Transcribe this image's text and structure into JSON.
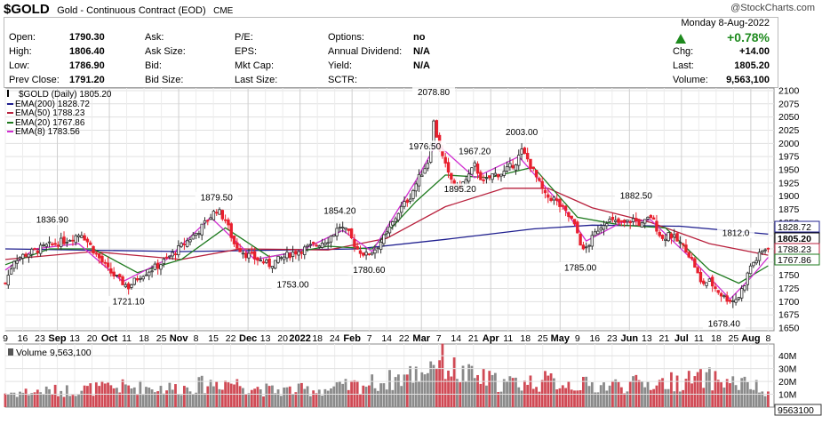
{
  "header": {
    "symbol": "$GOLD",
    "description": "Gold - Continuous Contract (EOD)",
    "exchange": "CME",
    "watermark": "@StockCharts.com"
  },
  "quote": {
    "date": "Monday  8-Aug-2022",
    "change_pct": "+0.78%",
    "col1": [
      {
        "label": "Open:",
        "value": "1790.30"
      },
      {
        "label": "High:",
        "value": "1806.40"
      },
      {
        "label": "Low:",
        "value": "1786.90"
      },
      {
        "label": "Prev Close:",
        "value": "1791.20"
      }
    ],
    "col2": [
      {
        "label": "Ask:",
        "value": ""
      },
      {
        "label": "Ask Size:",
        "value": ""
      },
      {
        "label": "Bid:",
        "value": ""
      },
      {
        "label": "Bid Size:",
        "value": ""
      }
    ],
    "col3": [
      {
        "label": "P/E:",
        "value": ""
      },
      {
        "label": "EPS:",
        "value": ""
      },
      {
        "label": "Mkt Cap:",
        "value": ""
      },
      {
        "label": "Last Size:",
        "value": ""
      }
    ],
    "col4": [
      {
        "label": "Options:",
        "value": "no"
      },
      {
        "label": "Annual Dividend:",
        "value": "N/A"
      },
      {
        "label": "Yield:",
        "value": "N/A"
      },
      {
        "label": "SCTR:",
        "value": ""
      }
    ],
    "col5": [
      {
        "label": "Chg:",
        "value": "+14.00"
      },
      {
        "label": "Last:",
        "value": "1805.20"
      },
      {
        "label": "Volume:",
        "value": "9,563,100"
      }
    ]
  },
  "legend": [
    {
      "text": "$GOLD (Daily) 1805.20",
      "color": "#000000"
    },
    {
      "text": "EMA(200) 1828.72",
      "color": "#1f1f8f"
    },
    {
      "text": "EMA(50) 1788.23",
      "color": "#b8203c"
    },
    {
      "text": "EMA(20) 1767.86",
      "color": "#1e7a1e"
    },
    {
      "text": "EMA(8) 1783.56",
      "color": "#d02ed0"
    }
  ],
  "volume_legend": "Volume 9,563,100",
  "colors": {
    "up": "#2b2b2b",
    "down": "#e8202e",
    "ema200": "#1f1f8f",
    "ema50": "#b8203c",
    "ema20": "#1e7a1e",
    "ema8": "#d02ed0",
    "vol_up": "#8a8a8a",
    "vol_down": "#d04a55",
    "grid": "#e0e0e0",
    "arrow_up": "#1e8a1e"
  },
  "chart_data": [
    {
      "type": "candlestick",
      "title": "$GOLD (Daily) 1805.20",
      "y_ticks": [
        1650,
        1675,
        1700,
        1725,
        1750,
        1775,
        1800,
        1825,
        1850,
        1875,
        1900,
        1925,
        1950,
        1975,
        2000,
        2025,
        2050,
        2075,
        2100
      ],
      "ylim": [
        1645,
        2105
      ],
      "x_ticks": [
        "9",
        "16",
        "23",
        "Sep",
        "13",
        "20",
        "Oct",
        "11",
        "18",
        "25",
        "Nov",
        "8",
        "15",
        "22",
        "Dec",
        "13",
        "20",
        "2022",
        "18",
        "24",
        "Feb",
        "7",
        "14",
        "22",
        "Mar",
        "7",
        "14",
        "21",
        "Apr",
        "11",
        "18",
        "25",
        "May",
        "9",
        "16",
        "23",
        "Jun",
        "13",
        "21",
        "Jul",
        "11",
        "18",
        "25",
        "Aug",
        "8"
      ],
      "month_ticks": [
        "Sep",
        "Oct",
        "Nov",
        "Dec",
        "2022",
        "Feb",
        "Mar",
        "Apr",
        "May",
        "Jun",
        "Jul",
        "Aug"
      ],
      "grid": true,
      "close_path": [
        {
          "t": 0,
          "v": 1735
        },
        {
          "t": 3,
          "v": 1780
        },
        {
          "t": 8,
          "v": 1792
        },
        {
          "t": 14,
          "v": 1805
        },
        {
          "t": 20,
          "v": 1815
        },
        {
          "t": 26,
          "v": 1830
        },
        {
          "t": 31,
          "v": 1790
        },
        {
          "t": 35,
          "v": 1760
        },
        {
          "t": 39,
          "v": 1740
        },
        {
          "t": 42,
          "v": 1728
        },
        {
          "t": 46,
          "v": 1750
        },
        {
          "t": 52,
          "v": 1768
        },
        {
          "t": 57,
          "v": 1790
        },
        {
          "t": 61,
          "v": 1810
        },
        {
          "t": 66,
          "v": 1835
        },
        {
          "t": 70,
          "v": 1862
        },
        {
          "t": 72,
          "v": 1875
        },
        {
          "t": 75,
          "v": 1855
        },
        {
          "t": 78,
          "v": 1810
        },
        {
          "t": 82,
          "v": 1790
        },
        {
          "t": 86,
          "v": 1780
        },
        {
          "t": 90,
          "v": 1770
        },
        {
          "t": 94,
          "v": 1782
        },
        {
          "t": 98,
          "v": 1793
        },
        {
          "t": 102,
          "v": 1800
        },
        {
          "t": 106,
          "v": 1808
        },
        {
          "t": 110,
          "v": 1818
        },
        {
          "t": 114,
          "v": 1843
        },
        {
          "t": 117,
          "v": 1828
        },
        {
          "t": 120,
          "v": 1800
        },
        {
          "t": 123,
          "v": 1788
        },
        {
          "t": 126,
          "v": 1800
        },
        {
          "t": 130,
          "v": 1828
        },
        {
          "t": 134,
          "v": 1870
        },
        {
          "t": 138,
          "v": 1900
        },
        {
          "t": 141,
          "v": 1935
        },
        {
          "t": 144,
          "v": 1965
        },
        {
          "t": 146,
          "v": 2040
        },
        {
          "t": 148,
          "v": 1990
        },
        {
          "t": 151,
          "v": 1940
        },
        {
          "t": 154,
          "v": 1915
        },
        {
          "t": 157,
          "v": 1930
        },
        {
          "t": 160,
          "v": 1958
        },
        {
          "t": 163,
          "v": 1925
        },
        {
          "t": 166,
          "v": 1940
        },
        {
          "t": 170,
          "v": 1945
        },
        {
          "t": 174,
          "v": 1965
        },
        {
          "t": 176,
          "v": 1985
        },
        {
          "t": 178,
          "v": 1970
        },
        {
          "t": 181,
          "v": 1935
        },
        {
          "t": 184,
          "v": 1900
        },
        {
          "t": 187,
          "v": 1895
        },
        {
          "t": 190,
          "v": 1875
        },
        {
          "t": 193,
          "v": 1855
        },
        {
          "t": 195,
          "v": 1830
        },
        {
          "t": 197,
          "v": 1795
        },
        {
          "t": 199,
          "v": 1810
        },
        {
          "t": 202,
          "v": 1838
        },
        {
          "t": 205,
          "v": 1855
        },
        {
          "t": 208,
          "v": 1850
        },
        {
          "t": 211,
          "v": 1848
        },
        {
          "t": 214,
          "v": 1856
        },
        {
          "t": 217,
          "v": 1845
        },
        {
          "t": 220,
          "v": 1862
        },
        {
          "t": 222,
          "v": 1840
        },
        {
          "t": 224,
          "v": 1818
        },
        {
          "t": 226,
          "v": 1830
        },
        {
          "t": 229,
          "v": 1815
        },
        {
          "t": 232,
          "v": 1800
        },
        {
          "t": 235,
          "v": 1768
        },
        {
          "t": 237,
          "v": 1735
        },
        {
          "t": 240,
          "v": 1738
        },
        {
          "t": 243,
          "v": 1720
        },
        {
          "t": 245,
          "v": 1708
        },
        {
          "t": 248,
          "v": 1702
        },
        {
          "t": 250,
          "v": 1710
        },
        {
          "t": 252,
          "v": 1735
        },
        {
          "t": 254,
          "v": 1768
        },
        {
          "t": 256,
          "v": 1780
        },
        {
          "t": 258,
          "v": 1795
        },
        {
          "t": 260,
          "v": 1805
        }
      ],
      "annotations": [
        {
          "label": "1836.90",
          "t": 16,
          "v": 1836.9
        },
        {
          "label": "1721.10",
          "t": 42,
          "v": 1721.1
        },
        {
          "label": "1879.50",
          "t": 72,
          "v": 1879.5
        },
        {
          "label": "1753.00",
          "t": 98,
          "v": 1753.0
        },
        {
          "label": "1854.20",
          "t": 114,
          "v": 1854.2
        },
        {
          "label": "1780.60",
          "t": 124,
          "v": 1780.6
        },
        {
          "label": "1976.50",
          "t": 143,
          "v": 1976.5
        },
        {
          "label": "2078.80",
          "t": 146,
          "v": 2078.8
        },
        {
          "label": "1967.20",
          "t": 160,
          "v": 1967.2
        },
        {
          "label": "1895.20",
          "t": 155,
          "v": 1895.2
        },
        {
          "label": "2003.00",
          "t": 176,
          "v": 2003.0
        },
        {
          "label": "1785.00",
          "t": 196,
          "v": 1785.0
        },
        {
          "label": "1882.50",
          "t": 215,
          "v": 1882.5
        },
        {
          "label": "1678.40",
          "t": 245,
          "v": 1678.4
        },
        {
          "label": "1812.0",
          "t": 249,
          "v": 1812.0
        }
      ],
      "right_labels": [
        {
          "label": "1828.72",
          "v": 1828.72
        },
        {
          "label": "1805.20",
          "v": 1805.2
        },
        {
          "label": "1788.23",
          "v": 1788.23
        },
        {
          "label": "1767.86",
          "v": 1767.86
        }
      ],
      "series": [
        {
          "name": "EMA(200) 1828.72",
          "points": [
            {
              "t": 0,
              "v": 1800
            },
            {
              "t": 60,
              "v": 1795
            },
            {
              "t": 120,
              "v": 1800
            },
            {
              "t": 150,
              "v": 1818
            },
            {
              "t": 180,
              "v": 1838
            },
            {
              "t": 200,
              "v": 1845
            },
            {
              "t": 230,
              "v": 1843
            },
            {
              "t": 260,
              "v": 1828
            }
          ]
        },
        {
          "name": "EMA(50) 1788.23",
          "points": [
            {
              "t": 0,
              "v": 1780
            },
            {
              "t": 30,
              "v": 1795
            },
            {
              "t": 60,
              "v": 1780
            },
            {
              "t": 80,
              "v": 1800
            },
            {
              "t": 110,
              "v": 1798
            },
            {
              "t": 130,
              "v": 1820
            },
            {
              "t": 150,
              "v": 1880
            },
            {
              "t": 170,
              "v": 1915
            },
            {
              "t": 185,
              "v": 1915
            },
            {
              "t": 200,
              "v": 1878
            },
            {
              "t": 220,
              "v": 1850
            },
            {
              "t": 240,
              "v": 1810
            },
            {
              "t": 260,
              "v": 1788
            }
          ]
        },
        {
          "name": "EMA(20) 1767.86",
          "points": [
            {
              "t": 0,
              "v": 1770
            },
            {
              "t": 15,
              "v": 1800
            },
            {
              "t": 30,
              "v": 1800
            },
            {
              "t": 45,
              "v": 1755
            },
            {
              "t": 60,
              "v": 1780
            },
            {
              "t": 75,
              "v": 1840
            },
            {
              "t": 90,
              "v": 1785
            },
            {
              "t": 110,
              "v": 1805
            },
            {
              "t": 125,
              "v": 1800
            },
            {
              "t": 140,
              "v": 1890
            },
            {
              "t": 150,
              "v": 1940
            },
            {
              "t": 165,
              "v": 1935
            },
            {
              "t": 180,
              "v": 1955
            },
            {
              "t": 195,
              "v": 1860
            },
            {
              "t": 210,
              "v": 1845
            },
            {
              "t": 225,
              "v": 1840
            },
            {
              "t": 240,
              "v": 1760
            },
            {
              "t": 250,
              "v": 1735
            },
            {
              "t": 260,
              "v": 1768
            }
          ]
        },
        {
          "name": "EMA(8) 1783.56",
          "points": [
            {
              "t": 0,
              "v": 1760
            },
            {
              "t": 10,
              "v": 1800
            },
            {
              "t": 25,
              "v": 1810
            },
            {
              "t": 40,
              "v": 1738
            },
            {
              "t": 55,
              "v": 1780
            },
            {
              "t": 70,
              "v": 1860
            },
            {
              "t": 85,
              "v": 1780
            },
            {
              "t": 100,
              "v": 1795
            },
            {
              "t": 115,
              "v": 1835
            },
            {
              "t": 125,
              "v": 1795
            },
            {
              "t": 140,
              "v": 1930
            },
            {
              "t": 147,
              "v": 2000
            },
            {
              "t": 160,
              "v": 1935
            },
            {
              "t": 175,
              "v": 1975
            },
            {
              "t": 190,
              "v": 1880
            },
            {
              "t": 198,
              "v": 1815
            },
            {
              "t": 210,
              "v": 1850
            },
            {
              "t": 220,
              "v": 1855
            },
            {
              "t": 235,
              "v": 1775
            },
            {
              "t": 247,
              "v": 1705
            },
            {
              "t": 254,
              "v": 1745
            },
            {
              "t": 260,
              "v": 1784
            }
          ]
        }
      ]
    },
    {
      "type": "bar",
      "title": "Volume 9,563,100",
      "y_ticks_labels": [
        "40M",
        "30M",
        "20M",
        "10M"
      ],
      "y_ticks": [
        40000000,
        30000000,
        20000000,
        10000000
      ],
      "ylim": [
        0,
        45000000
      ],
      "current_label": "9563100",
      "volume_path": [
        {
          "t": 0,
          "v": 12000000
        },
        {
          "t": 20,
          "v": 14000000
        },
        {
          "t": 40,
          "v": 17000000
        },
        {
          "t": 60,
          "v": 16000000
        },
        {
          "t": 75,
          "v": 22000000
        },
        {
          "t": 90,
          "v": 14000000
        },
        {
          "t": 110,
          "v": 15000000
        },
        {
          "t": 130,
          "v": 22000000
        },
        {
          "t": 142,
          "v": 30000000
        },
        {
          "t": 147,
          "v": 42000000
        },
        {
          "t": 155,
          "v": 28000000
        },
        {
          "t": 170,
          "v": 20000000
        },
        {
          "t": 185,
          "v": 22000000
        },
        {
          "t": 200,
          "v": 18000000
        },
        {
          "t": 220,
          "v": 20000000
        },
        {
          "t": 240,
          "v": 24000000
        },
        {
          "t": 255,
          "v": 18000000
        },
        {
          "t": 260,
          "v": 9563100
        }
      ]
    }
  ]
}
